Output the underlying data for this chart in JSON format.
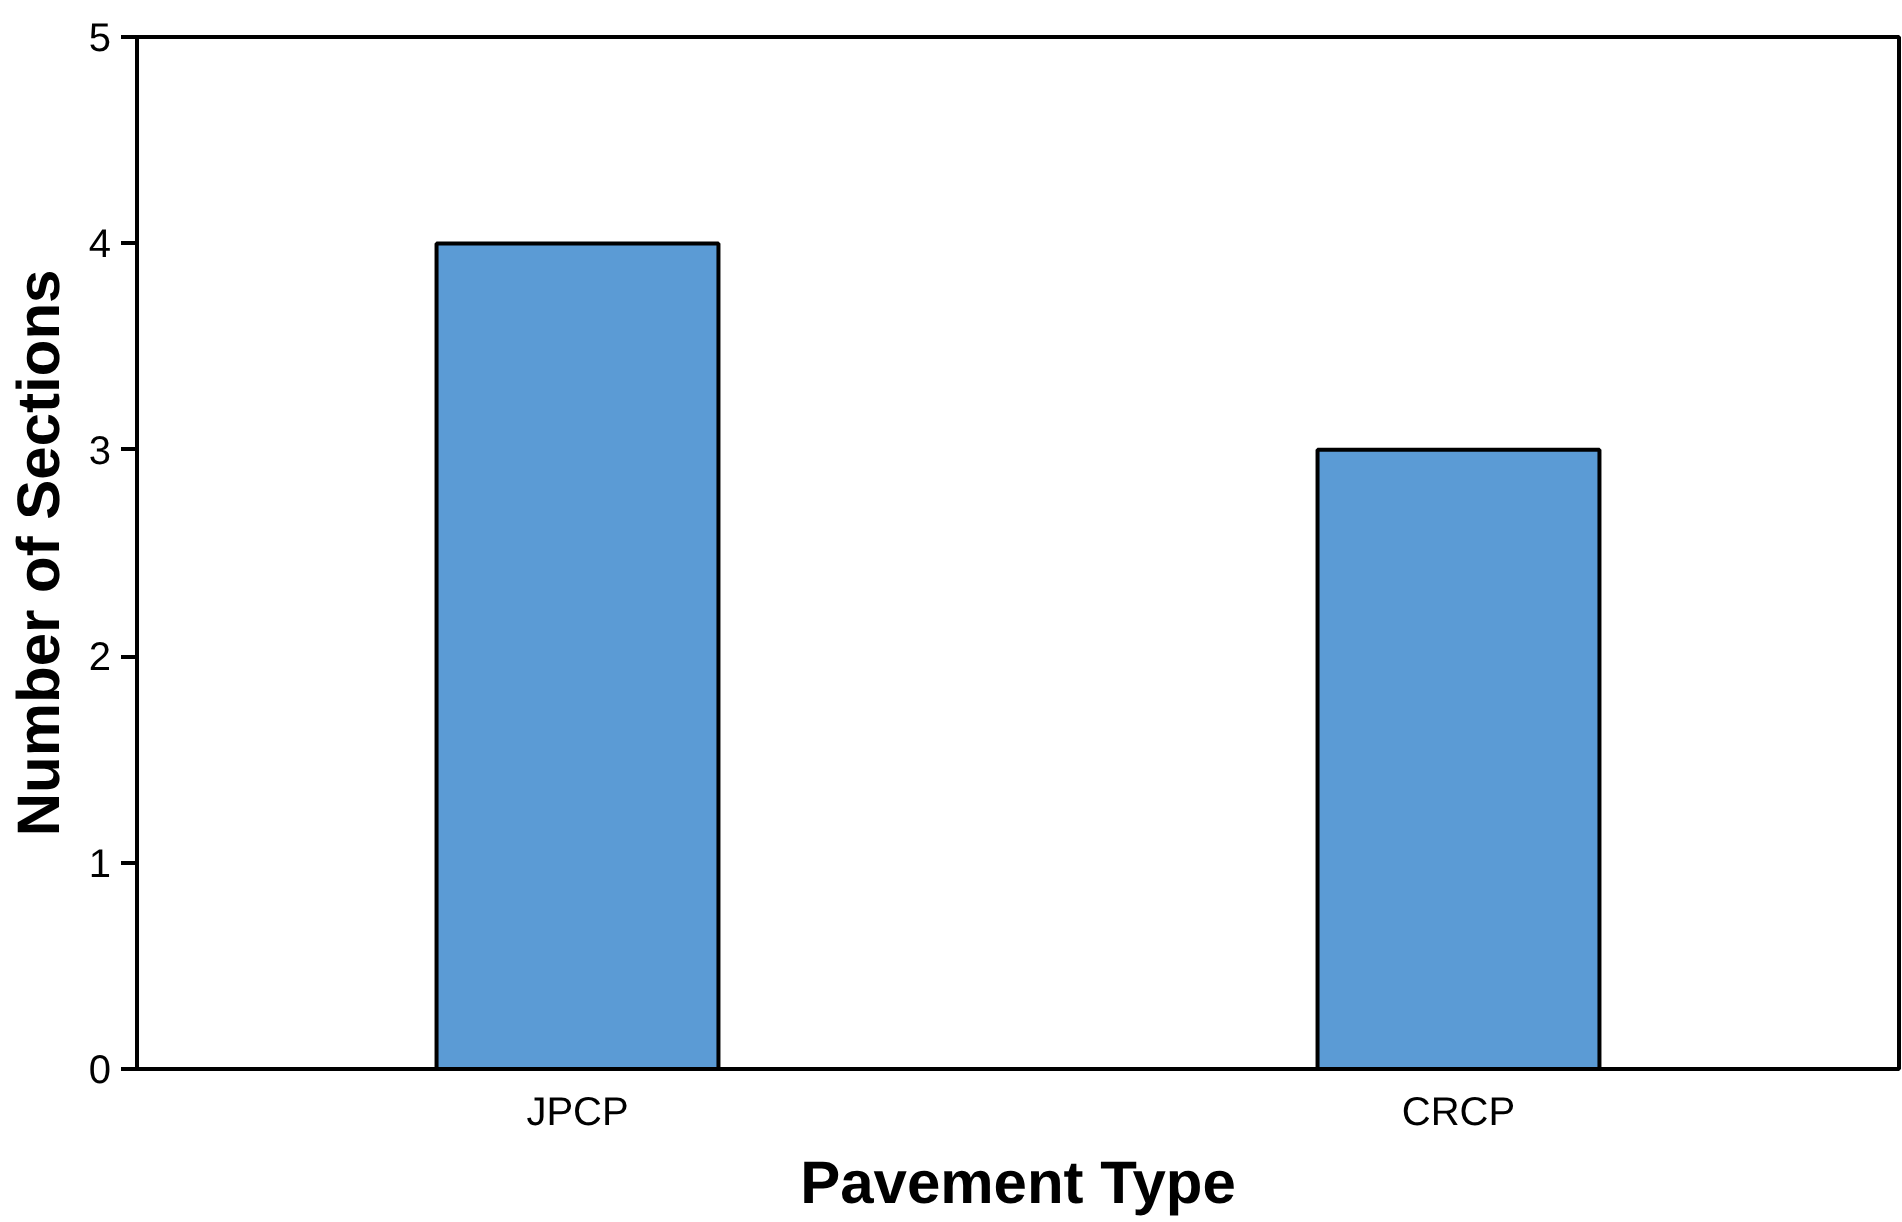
{
  "chart_data": {
    "type": "bar",
    "xlabel": "Pavement Type",
    "ylabel": "Number of Sections",
    "categories": [
      "JPCP",
      "CRCP"
    ],
    "values": [
      4,
      3
    ],
    "color": "#5b9bd5",
    "ylim": [
      0,
      5
    ],
    "yticks": [
      0,
      1,
      2,
      3,
      4,
      5
    ],
    "grid": false
  }
}
